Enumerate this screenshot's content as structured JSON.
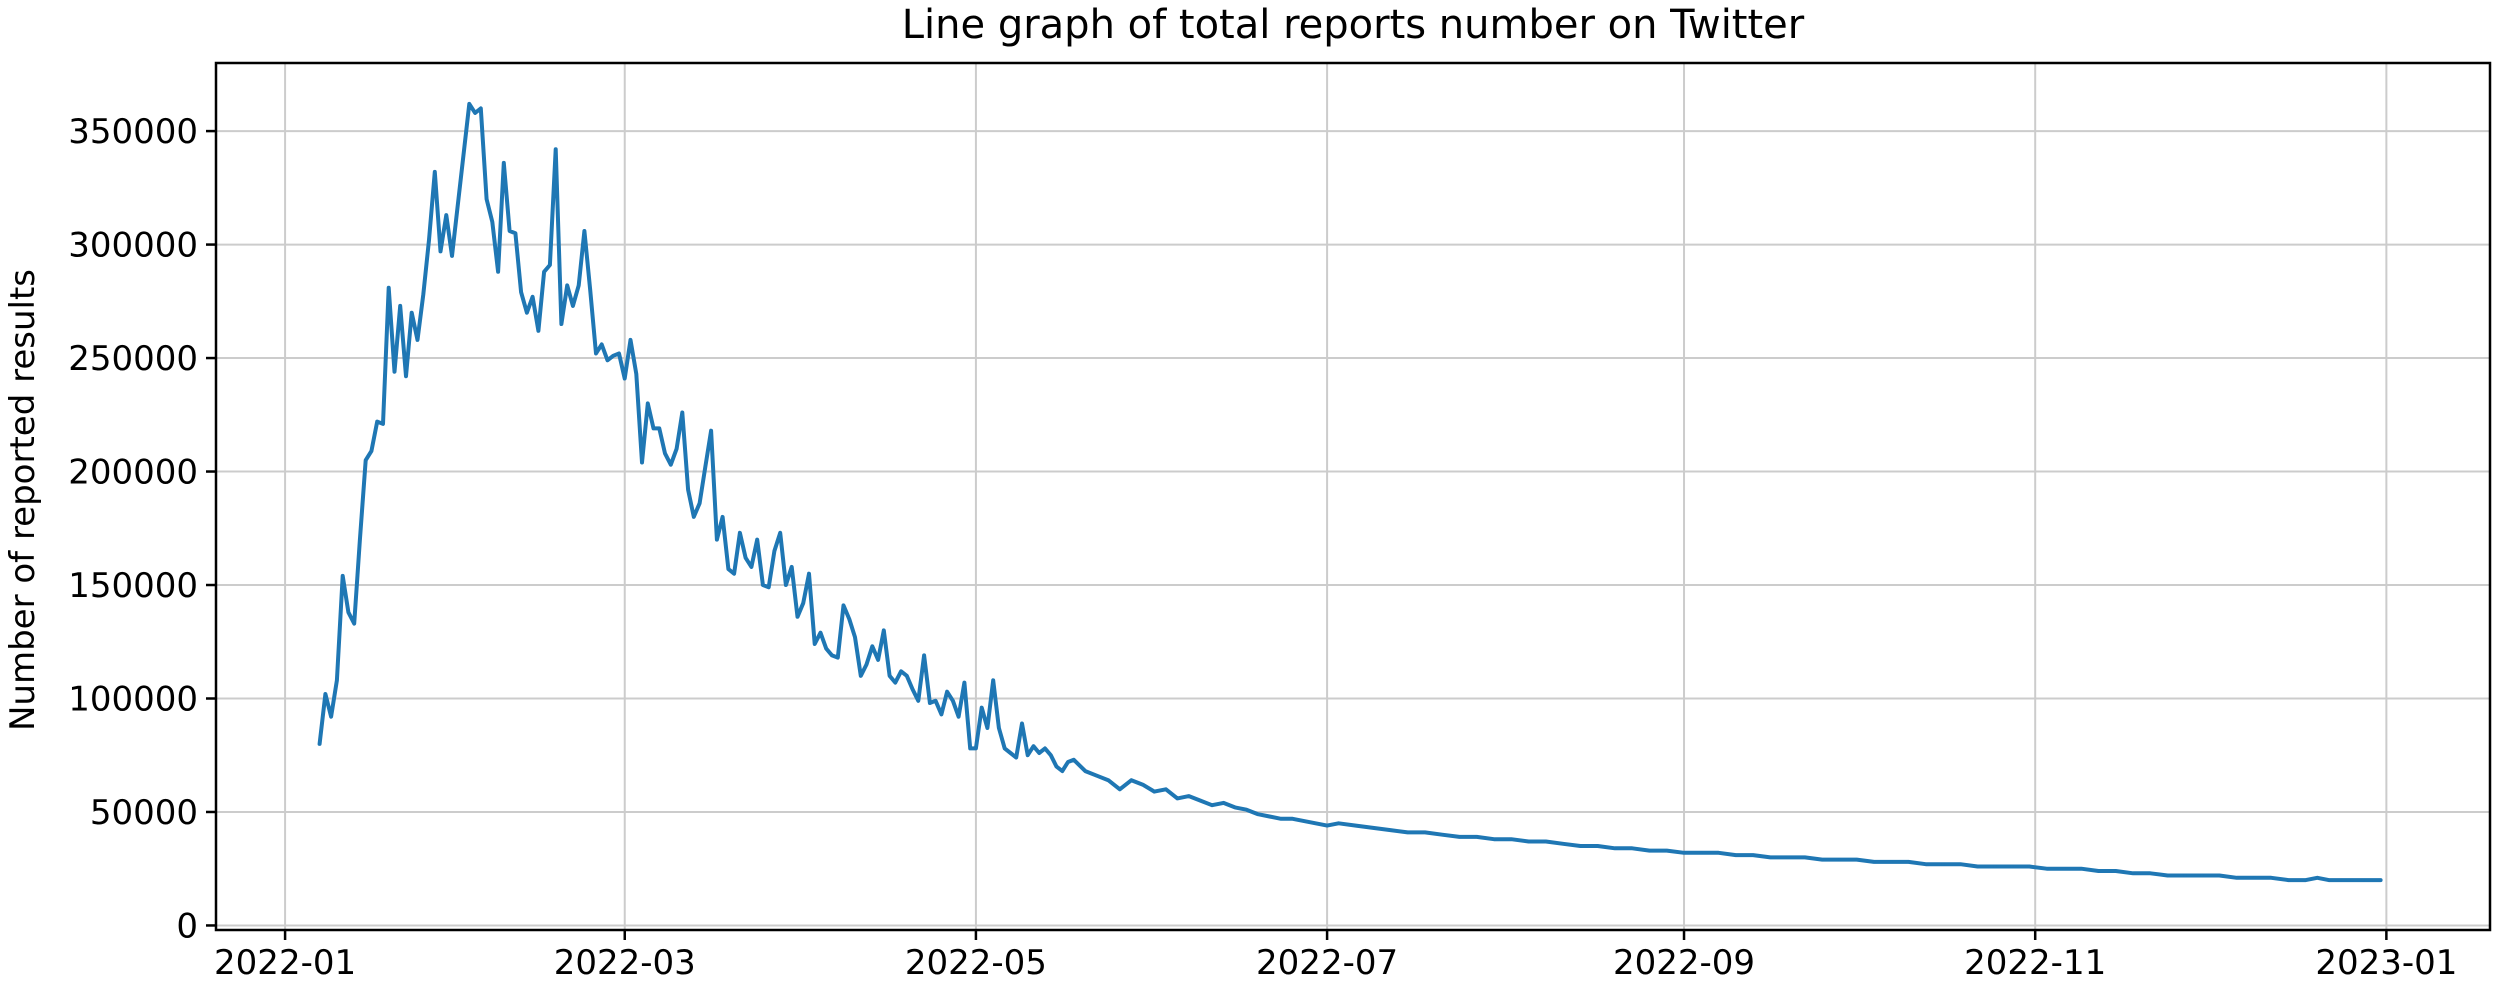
{
  "chart_data": {
    "type": "line",
    "title": "Line graph of total reports number on Twitter",
    "xlabel": "",
    "ylabel": "Number of reported results",
    "x_tick_labels": [
      "2022-01",
      "2022-03",
      "2022-05",
      "2022-07",
      "2022-09",
      "2022-11",
      "2023-01"
    ],
    "y_tick_labels": [
      "0",
      "50000",
      "100000",
      "150000",
      "200000",
      "250000",
      "300000",
      "350000"
    ],
    "y_ticks": [
      0,
      50000,
      100000,
      150000,
      200000,
      250000,
      300000,
      350000
    ],
    "xlim": [
      "2021-12-20",
      "2023-01-19"
    ],
    "ylim": [
      -2000,
      380000
    ],
    "grid": true,
    "color": "#1f77b4",
    "series": [
      {
        "x": [
          "2022-01-07",
          "2022-01-08",
          "2022-01-09",
          "2022-01-10",
          "2022-01-11",
          "2022-01-12",
          "2022-01-13",
          "2022-01-14",
          "2022-01-15",
          "2022-01-16",
          "2022-01-17",
          "2022-01-18",
          "2022-01-19",
          "2022-01-20",
          "2022-01-21",
          "2022-01-22",
          "2022-01-23",
          "2022-01-24",
          "2022-01-25",
          "2022-01-26",
          "2022-01-27",
          "2022-01-28",
          "2022-01-29",
          "2022-01-30",
          "2022-02-02",
          "2022-02-03",
          "2022-02-04",
          "2022-02-05",
          "2022-02-06",
          "2022-02-07",
          "2022-02-08",
          "2022-02-09",
          "2022-02-10",
          "2022-02-11",
          "2022-02-12",
          "2022-02-13",
          "2022-02-14",
          "2022-02-15",
          "2022-02-16",
          "2022-02-17",
          "2022-02-18",
          "2022-02-19",
          "2022-02-20",
          "2022-02-21",
          "2022-02-22",
          "2022-02-23",
          "2022-02-24",
          "2022-02-25",
          "2022-02-26",
          "2022-02-27",
          "2022-02-28",
          "2022-03-01",
          "2022-03-02",
          "2022-03-03",
          "2022-03-04",
          "2022-03-05",
          "2022-03-06",
          "2022-03-07",
          "2022-03-08",
          "2022-03-09",
          "2022-03-10",
          "2022-03-11",
          "2022-03-12",
          "2022-03-13",
          "2022-03-14",
          "2022-03-15",
          "2022-03-16",
          "2022-03-17",
          "2022-03-18",
          "2022-03-19",
          "2022-03-20",
          "2022-03-21",
          "2022-03-22",
          "2022-03-23",
          "2022-03-24",
          "2022-03-25",
          "2022-03-26",
          "2022-03-27",
          "2022-03-28",
          "2022-03-29",
          "2022-03-30",
          "2022-03-31",
          "2022-04-01",
          "2022-04-02",
          "2022-04-03",
          "2022-04-04",
          "2022-04-05",
          "2022-04-06",
          "2022-04-07",
          "2022-04-08",
          "2022-04-09",
          "2022-04-10",
          "2022-04-11",
          "2022-04-12",
          "2022-04-13",
          "2022-04-14",
          "2022-04-15",
          "2022-04-16",
          "2022-04-17",
          "2022-04-18",
          "2022-04-19",
          "2022-04-20",
          "2022-04-21",
          "2022-04-22",
          "2022-04-23",
          "2022-04-24",
          "2022-04-25",
          "2022-04-26",
          "2022-04-27",
          "2022-04-28",
          "2022-04-29",
          "2022-04-30",
          "2022-05-01",
          "2022-05-02",
          "2022-05-03",
          "2022-05-04",
          "2022-05-05",
          "2022-05-06",
          "2022-05-07",
          "2022-05-08",
          "2022-05-09",
          "2022-05-10",
          "2022-05-11",
          "2022-05-12",
          "2022-05-13",
          "2022-05-14",
          "2022-05-15",
          "2022-05-16",
          "2022-05-17",
          "2022-05-18",
          "2022-05-20",
          "2022-05-22",
          "2022-05-24",
          "2022-05-26",
          "2022-05-28",
          "2022-05-30",
          "2022-06-01",
          "2022-06-03",
          "2022-06-05",
          "2022-06-07",
          "2022-06-09",
          "2022-06-11",
          "2022-06-13",
          "2022-06-15",
          "2022-06-17",
          "2022-06-19",
          "2022-06-21",
          "2022-06-23",
          "2022-06-25",
          "2022-06-27",
          "2022-06-29",
          "2022-07-01",
          "2022-07-03",
          "2022-07-06",
          "2022-07-09",
          "2022-07-12",
          "2022-07-15",
          "2022-07-18",
          "2022-07-21",
          "2022-07-24",
          "2022-07-27",
          "2022-07-30",
          "2022-08-02",
          "2022-08-05",
          "2022-08-08",
          "2022-08-11",
          "2022-08-14",
          "2022-08-17",
          "2022-08-20",
          "2022-08-23",
          "2022-08-26",
          "2022-08-29",
          "2022-09-01",
          "2022-09-04",
          "2022-09-07",
          "2022-09-10",
          "2022-09-13",
          "2022-09-16",
          "2022-09-19",
          "2022-09-22",
          "2022-09-25",
          "2022-09-28",
          "2022-10-01",
          "2022-10-04",
          "2022-10-07",
          "2022-10-10",
          "2022-10-13",
          "2022-10-16",
          "2022-10-19",
          "2022-10-22",
          "2022-10-25",
          "2022-10-28",
          "2022-10-31",
          "2022-11-03",
          "2022-11-06",
          "2022-11-09",
          "2022-11-12",
          "2022-11-15",
          "2022-11-18",
          "2022-11-21",
          "2022-11-24",
          "2022-11-27",
          "2022-11-30",
          "2022-12-03",
          "2022-12-06",
          "2022-12-09",
          "2022-12-12",
          "2022-12-15",
          "2022-12-18",
          "2022-12-20",
          "2022-12-22",
          "2022-12-24",
          "2022-12-26",
          "2022-12-28",
          "2022-12-31"
        ],
        "values": [
          80000,
          102000,
          92000,
          108000,
          154000,
          138000,
          133000,
          170000,
          205000,
          209000,
          222000,
          221000,
          281000,
          244000,
          273000,
          242000,
          270000,
          258000,
          278000,
          302000,
          332000,
          297000,
          313000,
          295000,
          362000,
          358000,
          360000,
          320000,
          310000,
          288000,
          336000,
          306000,
          305000,
          279000,
          270000,
          277000,
          262000,
          288000,
          291000,
          342000,
          265000,
          282000,
          273000,
          282000,
          306000,
          280000,
          252000,
          256000,
          249000,
          251000,
          252000,
          241000,
          258000,
          243000,
          204000,
          230000,
          219000,
          219000,
          208000,
          203000,
          210000,
          226000,
          192000,
          180000,
          186000,
          202000,
          218000,
          170000,
          180000,
          157000,
          155000,
          173000,
          162000,
          158000,
          170000,
          150000,
          149000,
          165000,
          173000,
          150000,
          158000,
          136000,
          142000,
          155000,
          124000,
          129000,
          122000,
          119000,
          118000,
          141000,
          135000,
          127000,
          110000,
          115000,
          123000,
          117000,
          130000,
          110000,
          107000,
          112000,
          110000,
          104000,
          99000,
          119000,
          98000,
          99000,
          93000,
          103000,
          99000,
          92000,
          107000,
          78000,
          78000,
          96000,
          87000,
          108000,
          87000,
          78000,
          76000,
          74000,
          89000,
          75000,
          79000,
          76000,
          78000,
          75000,
          70000,
          68000,
          72000,
          73000,
          68000,
          66000,
          64000,
          60000,
          64000,
          62000,
          59000,
          60000,
          56000,
          57000,
          55000,
          53000,
          54000,
          52000,
          51000,
          49000,
          48000,
          47000,
          47000,
          46000,
          45000,
          44000,
          45000,
          44000,
          43000,
          42000,
          41000,
          41000,
          40000,
          39000,
          39000,
          38000,
          38000,
          37000,
          37000,
          36000,
          35000,
          35000,
          34000,
          34000,
          33000,
          33000,
          32000,
          32000,
          32000,
          31000,
          31000,
          30000,
          30000,
          30000,
          29000,
          29000,
          29000,
          28000,
          28000,
          28000,
          27000,
          27000,
          27000,
          26000,
          26000,
          26000,
          26000,
          25000,
          25000,
          25000,
          24000,
          24000,
          23000,
          23000,
          22000,
          22000,
          22000,
          22000,
          21000,
          21000,
          21000,
          20000,
          20000,
          21000,
          20000,
          20000,
          20000,
          20000,
          20000
        ]
      }
    ]
  }
}
